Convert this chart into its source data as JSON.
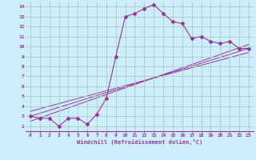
{
  "xlabel": "Windchill (Refroidissement éolien,°C)",
  "bg_color": "#cceeff",
  "grid_color": "#aaccbb",
  "line_color": "#993399",
  "xlim": [
    -0.5,
    23.5
  ],
  "ylim": [
    1.5,
    14.5
  ],
  "xticks": [
    0,
    1,
    2,
    3,
    4,
    5,
    6,
    7,
    8,
    9,
    10,
    11,
    12,
    13,
    14,
    15,
    16,
    17,
    18,
    19,
    20,
    21,
    22,
    23
  ],
  "yticks": [
    2,
    3,
    4,
    5,
    6,
    7,
    8,
    9,
    10,
    11,
    12,
    13,
    14
  ],
  "curve1_x": [
    0,
    1,
    2,
    3,
    4,
    5,
    6,
    7,
    8,
    9,
    10,
    11,
    12,
    13,
    14,
    15,
    16,
    17,
    18,
    19,
    20,
    21,
    22,
    23
  ],
  "curve1_y": [
    3.0,
    2.8,
    2.8,
    2.0,
    2.8,
    2.8,
    2.2,
    3.2,
    4.8,
    9.0,
    13.0,
    13.3,
    13.8,
    14.2,
    13.3,
    12.5,
    12.3,
    10.8,
    11.0,
    10.5,
    10.3,
    10.5,
    9.8,
    9.8
  ],
  "line2_x": [
    0,
    23
  ],
  "line2_y": [
    3.0,
    9.8
  ],
  "line3_x": [
    0,
    23
  ],
  "line3_y": [
    2.5,
    10.2
  ],
  "line4_x": [
    0,
    23
  ],
  "line4_y": [
    3.5,
    9.4
  ]
}
